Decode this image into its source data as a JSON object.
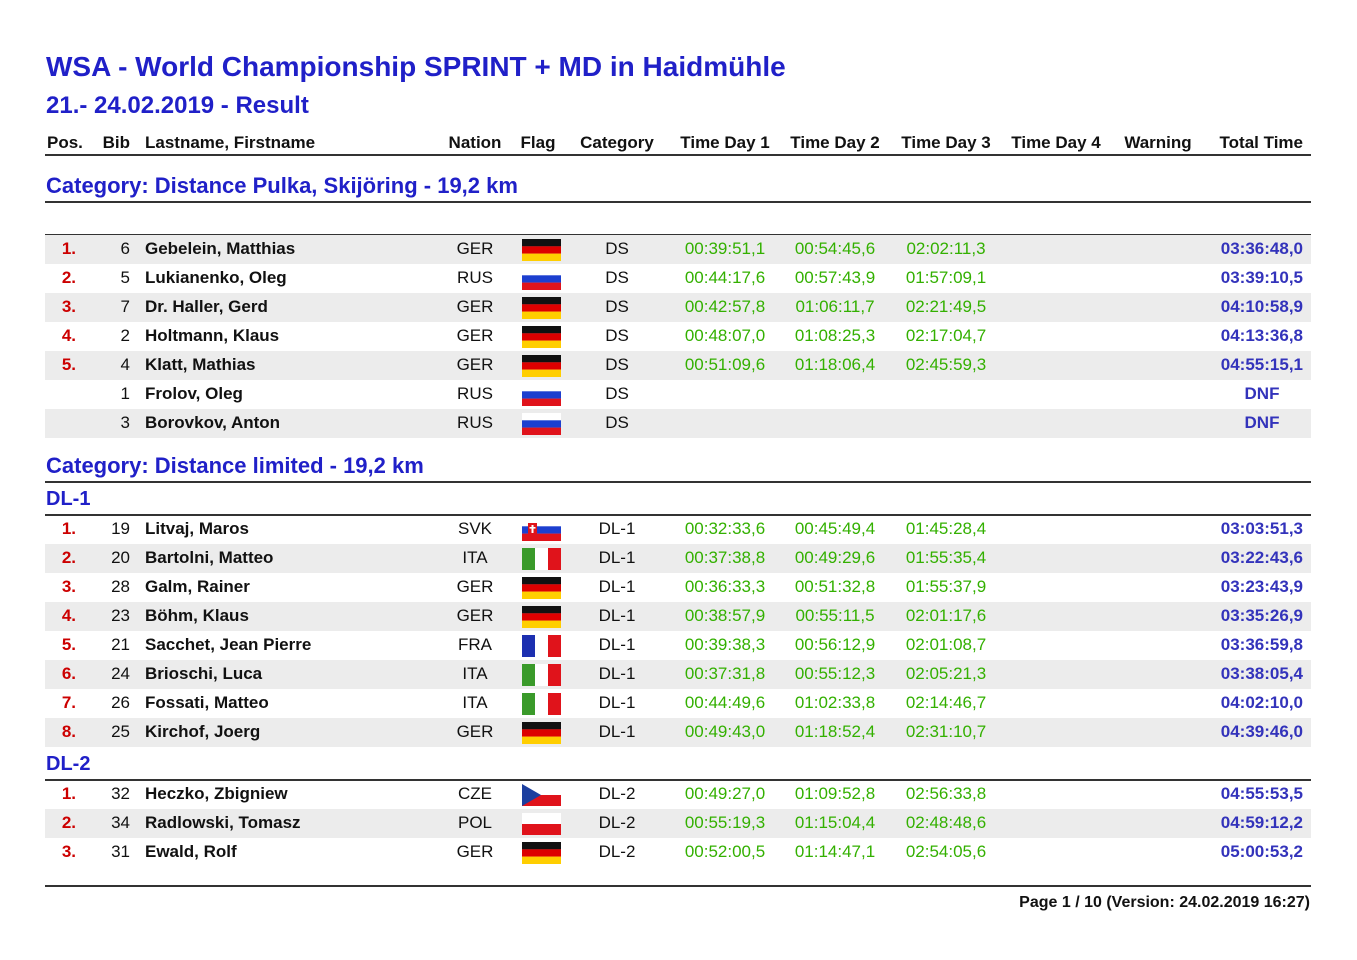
{
  "title": "WSA - World Championship SPRINT + MD in Haidmühle",
  "subtitle": "21.- 24.02.2019 - Result",
  "columns": [
    "Pos.",
    "Bib",
    "Lastname, Firstname",
    "Nation",
    "Flag",
    "Category",
    "Time Day 1",
    "Time Day 2",
    "Time Day 3",
    "Time Day 4",
    "Warning",
    "Total Time"
  ],
  "sections": [
    {
      "title": "Category: Distance Pulka, Skijöring - 19,2 km",
      "groups": [
        {
          "rows": [
            {
              "pos": "1.",
              "bib": 6,
              "name": "Gebelein, Matthias",
              "nation": "GER",
              "category": "DS",
              "day1": "00:39:51,1",
              "day2": "00:54:45,6",
              "day3": "02:02:11,3",
              "total": "03:36:48,0"
            },
            {
              "pos": "2.",
              "bib": 5,
              "name": "Lukianenko, Oleg",
              "nation": "RUS",
              "category": "DS",
              "day1": "00:44:17,6",
              "day2": "00:57:43,9",
              "day3": "01:57:09,1",
              "total": "03:39:10,5"
            },
            {
              "pos": "3.",
              "bib": 7,
              "name": "Dr. Haller, Gerd",
              "nation": "GER",
              "category": "DS",
              "day1": "00:42:57,8",
              "day2": "01:06:11,7",
              "day3": "02:21:49,5",
              "total": "04:10:58,9"
            },
            {
              "pos": "4.",
              "bib": 2,
              "name": "Holtmann, Klaus",
              "nation": "GER",
              "category": "DS",
              "day1": "00:48:07,0",
              "day2": "01:08:25,3",
              "day3": "02:17:04,7",
              "total": "04:13:36,8"
            },
            {
              "pos": "5.",
              "bib": 4,
              "name": "Klatt, Mathias",
              "nation": "GER",
              "category": "DS",
              "day1": "00:51:09,6",
              "day2": "01:18:06,4",
              "day3": "02:45:59,3",
              "total": "04:55:15,1"
            },
            {
              "bib": 1,
              "name": "Frolov, Oleg",
              "nation": "RUS",
              "category": "DS",
              "total": "DNF"
            },
            {
              "bib": 3,
              "name": "Borovkov, Anton",
              "nation": "RUS",
              "category": "DS",
              "total": "DNF"
            }
          ]
        }
      ]
    },
    {
      "title": "Category: Distance limited - 19,2 km",
      "groups": [
        {
          "name": "DL-1",
          "rows": [
            {
              "pos": "1.",
              "bib": 19,
              "name": "Litvaj, Maros",
              "nation": "SVK",
              "category": "DL-1",
              "day1": "00:32:33,6",
              "day2": "00:45:49,4",
              "day3": "01:45:28,4",
              "total": "03:03:51,3"
            },
            {
              "pos": "2.",
              "bib": 20,
              "name": "Bartolni, Matteo",
              "nation": "ITA",
              "category": "DL-1",
              "day1": "00:37:38,8",
              "day2": "00:49:29,6",
              "day3": "01:55:35,4",
              "total": "03:22:43,6"
            },
            {
              "pos": "3.",
              "bib": 28,
              "name": "Galm, Rainer",
              "nation": "GER",
              "category": "DL-1",
              "day1": "00:36:33,3",
              "day2": "00:51:32,8",
              "day3": "01:55:37,9",
              "total": "03:23:43,9"
            },
            {
              "pos": "4.",
              "bib": 23,
              "name": "Böhm, Klaus",
              "nation": "GER",
              "category": "DL-1",
              "day1": "00:38:57,9",
              "day2": "00:55:11,5",
              "day3": "02:01:17,6",
              "total": "03:35:26,9"
            },
            {
              "pos": "5.",
              "bib": 21,
              "name": "Sacchet, Jean Pierre",
              "nation": "FRA",
              "category": "DL-1",
              "day1": "00:39:38,3",
              "day2": "00:56:12,9",
              "day3": "02:01:08,7",
              "total": "03:36:59,8"
            },
            {
              "pos": "6.",
              "bib": 24,
              "name": "Brioschi, Luca",
              "nation": "ITA",
              "category": "DL-1",
              "day1": "00:37:31,8",
              "day2": "00:55:12,3",
              "day3": "02:05:21,3",
              "total": "03:38:05,4"
            },
            {
              "pos": "7.",
              "bib": 26,
              "name": "Fossati, Matteo",
              "nation": "ITA",
              "category": "DL-1",
              "day1": "00:44:49,6",
              "day2": "01:02:33,8",
              "day3": "02:14:46,7",
              "total": "04:02:10,0"
            },
            {
              "pos": "8.",
              "bib": 25,
              "name": "Kirchof, Joerg",
              "nation": "GER",
              "category": "DL-1",
              "day1": "00:49:43,0",
              "day2": "01:18:52,4",
              "day3": "02:31:10,7",
              "total": "04:39:46,0"
            }
          ]
        },
        {
          "name": "DL-2",
          "rows": [
            {
              "pos": "1.",
              "bib": 32,
              "name": "Heczko, Zbigniew",
              "nation": "CZE",
              "category": "DL-2",
              "day1": "00:49:27,0",
              "day2": "01:09:52,8",
              "day3": "02:56:33,8",
              "total": "04:55:53,5"
            },
            {
              "pos": "2.",
              "bib": 34,
              "name": "Radlowski, Tomasz",
              "nation": "POL",
              "category": "DL-2",
              "day1": "00:55:19,3",
              "day2": "01:15:04,4",
              "day3": "02:48:48,6",
              "total": "04:59:12,2"
            },
            {
              "pos": "3.",
              "bib": 31,
              "name": "Ewald, Rolf",
              "nation": "GER",
              "category": "DL-2",
              "day1": "00:52:00,5",
              "day2": "01:14:47,1",
              "day3": "02:54:05,6",
              "total": "05:00:53,2"
            }
          ]
        }
      ]
    }
  ],
  "footer": "Page 1 / 10 (Version: 24.02.2019 16:27)"
}
